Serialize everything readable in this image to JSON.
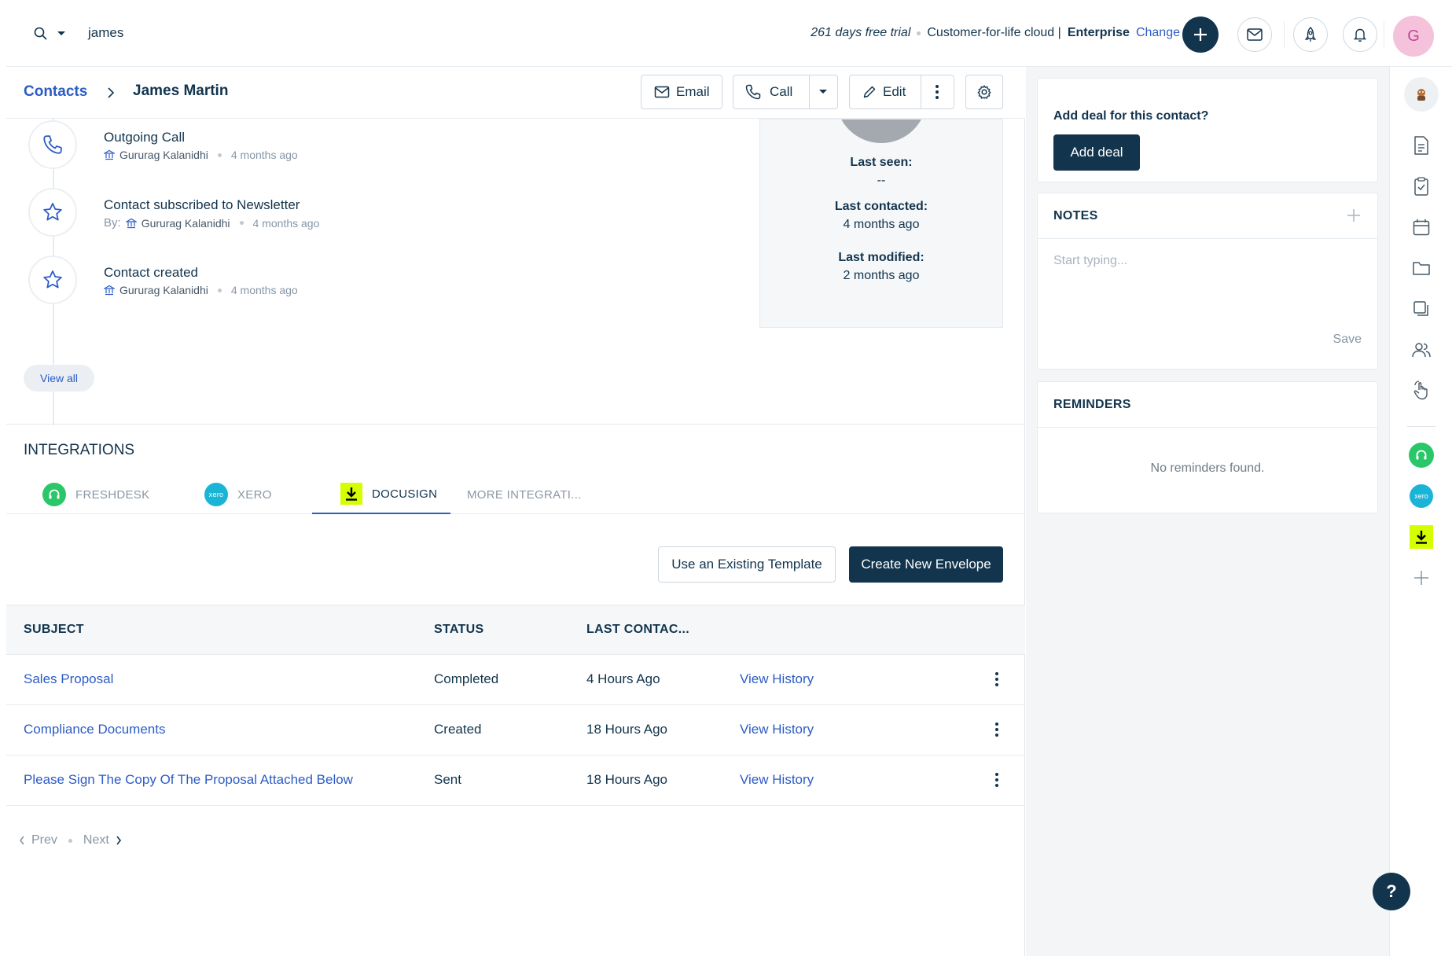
{
  "topbar": {
    "search_value": "james",
    "trial_text": "261 days free trial",
    "plan_text": "Customer-for-life cloud |",
    "plan_tier": "Enterprise",
    "change_label": "Change",
    "avatar_initial": "G"
  },
  "breadcrumb": {
    "parent": "Contacts",
    "current": "James Martin"
  },
  "actions": {
    "email_label": "Email",
    "call_label": "Call",
    "edit_label": "Edit"
  },
  "timeline": [
    {
      "title": "Outgoing Call",
      "prefix": "",
      "user": "Gururag Kalanidhi",
      "ago": "4 months ago",
      "icon": "phone-icon"
    },
    {
      "title": "Contact subscribed to Newsletter",
      "prefix": "By:",
      "user": "Gururag Kalanidhi",
      "ago": "4 months ago",
      "icon": "star-icon"
    },
    {
      "title": "Contact created",
      "prefix": "",
      "user": "Gururag Kalanidhi",
      "ago": "4 months ago",
      "icon": "star-icon"
    }
  ],
  "view_all_label": "View all",
  "seen": {
    "last_seen_label": "Last seen:",
    "last_seen_value": "--",
    "last_contacted_label": "Last contacted:",
    "last_contacted_value": "4 months ago",
    "last_modified_label": "Last modified:",
    "last_modified_value": "2 months ago"
  },
  "integrations": {
    "title": "INTEGRATIONS",
    "tabs": [
      {
        "label": "FRESHDESK",
        "color": "#2ac769"
      },
      {
        "label": "XERO",
        "color": "#1ab4d7"
      },
      {
        "label": "DOCUSIGN",
        "color": "#d5ff00"
      },
      {
        "label": "MORE INTEGRATI..."
      }
    ],
    "template_btn": "Use an Existing Template",
    "envelope_btn": "Create New Envelope"
  },
  "table": {
    "columns": [
      "SUBJECT",
      "STATUS",
      "LAST CONTAC..."
    ],
    "rows": [
      {
        "subject": "Sales Proposal",
        "status": "Completed",
        "last": "4 Hours Ago",
        "action": "View History"
      },
      {
        "subject": "Compliance Documents",
        "status": "Created",
        "last": "18 Hours Ago",
        "action": "View History"
      },
      {
        "subject": "Please Sign The Copy Of The Proposal Attached Below",
        "status": "Sent",
        "last": "18 Hours Ago",
        "action": "View History"
      }
    ]
  },
  "pager": {
    "prev": "Prev",
    "next": "Next"
  },
  "right": {
    "deal_question": "Add deal for this contact?",
    "deal_button": "Add deal",
    "notes_title": "NOTES",
    "notes_placeholder": "Start typing...",
    "notes_save": "Save",
    "reminders_title": "REMINDERS",
    "reminders_empty": "No reminders found."
  },
  "help_label": "?",
  "colors": {
    "primary": "#12344d",
    "link": "#2c5cc5",
    "freshdesk": "#2ac769",
    "xero": "#1ab4d7",
    "docusign": "#d5ff00"
  }
}
